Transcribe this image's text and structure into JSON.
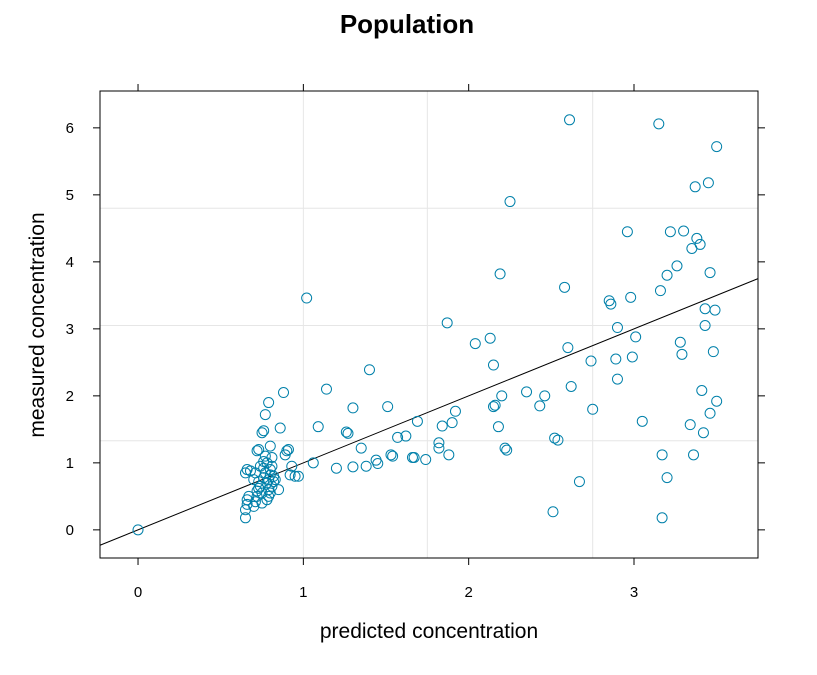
{
  "chart_data": {
    "type": "scatter",
    "title": "Population",
    "xlabel": "predicted concentration",
    "ylabel": "measured concentration",
    "xlim": [
      -0.23,
      3.75
    ],
    "ylim": [
      -0.42,
      6.55
    ],
    "xticks": [
      0,
      1,
      2,
      3
    ],
    "yticks": [
      0,
      1,
      2,
      3,
      4,
      5,
      6
    ],
    "grid": true,
    "point_color": "#0080aa",
    "line_color": "#000000",
    "grid_color": "#e6e6e6",
    "identity_line": {
      "x": [
        -0.23,
        3.75
      ],
      "y": [
        -0.23,
        3.75
      ]
    },
    "points": [
      [
        0.0,
        0.0
      ],
      [
        0.65,
        0.18
      ],
      [
        0.65,
        0.3
      ],
      [
        0.66,
        0.38
      ],
      [
        0.66,
        0.45
      ],
      [
        0.67,
        0.5
      ],
      [
        0.65,
        0.85
      ],
      [
        0.66,
        0.9
      ],
      [
        0.68,
        0.88
      ],
      [
        0.7,
        0.35
      ],
      [
        0.71,
        0.42
      ],
      [
        0.72,
        0.5
      ],
      [
        0.72,
        0.58
      ],
      [
        0.73,
        0.62
      ],
      [
        0.73,
        0.72
      ],
      [
        0.74,
        0.65
      ],
      [
        0.75,
        0.4
      ],
      [
        0.75,
        0.55
      ],
      [
        0.76,
        0.78
      ],
      [
        0.76,
        0.92
      ],
      [
        0.77,
        0.85
      ],
      [
        0.78,
        0.7
      ],
      [
        0.78,
        1.0
      ],
      [
        0.79,
        0.6
      ],
      [
        0.79,
        0.75
      ],
      [
        0.8,
        0.9
      ],
      [
        0.8,
        0.82
      ],
      [
        0.81,
        0.95
      ],
      [
        0.81,
        0.65
      ],
      [
        0.82,
        0.72
      ],
      [
        0.7,
        0.75
      ],
      [
        0.71,
        0.85
      ],
      [
        0.72,
        1.18
      ],
      [
        0.73,
        1.2
      ],
      [
        0.74,
        0.95
      ],
      [
        0.76,
        1.02
      ],
      [
        0.77,
        1.1
      ],
      [
        0.78,
        0.45
      ],
      [
        0.79,
        0.5
      ],
      [
        0.8,
        0.55
      ],
      [
        0.75,
        1.45
      ],
      [
        0.76,
        1.48
      ],
      [
        0.77,
        1.72
      ],
      [
        0.79,
        1.9
      ],
      [
        0.8,
        1.25
      ],
      [
        0.81,
        1.08
      ],
      [
        0.82,
        0.8
      ],
      [
        0.83,
        0.75
      ],
      [
        0.85,
        0.6
      ],
      [
        0.86,
        1.52
      ],
      [
        0.88,
        2.05
      ],
      [
        0.89,
        1.12
      ],
      [
        0.9,
        1.18
      ],
      [
        0.91,
        1.2
      ],
      [
        0.92,
        0.82
      ],
      [
        0.93,
        0.95
      ],
      [
        0.95,
        0.8
      ],
      [
        0.97,
        0.8
      ],
      [
        1.02,
        3.46
      ],
      [
        1.06,
        1.0
      ],
      [
        1.09,
        1.54
      ],
      [
        1.14,
        2.1
      ],
      [
        1.2,
        0.92
      ],
      [
        1.26,
        1.46
      ],
      [
        1.27,
        1.44
      ],
      [
        1.3,
        1.82
      ],
      [
        1.3,
        0.94
      ],
      [
        1.35,
        1.22
      ],
      [
        1.38,
        0.95
      ],
      [
        1.4,
        2.39
      ],
      [
        1.44,
        1.04
      ],
      [
        1.45,
        0.99
      ],
      [
        1.51,
        1.84
      ],
      [
        1.53,
        1.12
      ],
      [
        1.54,
        1.1
      ],
      [
        1.57,
        1.38
      ],
      [
        1.62,
        1.4
      ],
      [
        1.66,
        1.08
      ],
      [
        1.67,
        1.08
      ],
      [
        1.69,
        1.62
      ],
      [
        1.74,
        1.05
      ],
      [
        1.82,
        1.3
      ],
      [
        1.82,
        1.22
      ],
      [
        1.84,
        1.55
      ],
      [
        1.87,
        3.09
      ],
      [
        1.88,
        1.12
      ],
      [
        1.9,
        1.6
      ],
      [
        1.92,
        1.77
      ],
      [
        2.04,
        2.78
      ],
      [
        2.13,
        2.86
      ],
      [
        2.15,
        2.46
      ],
      [
        2.15,
        1.84
      ],
      [
        2.16,
        1.86
      ],
      [
        2.18,
        1.54
      ],
      [
        2.19,
        3.82
      ],
      [
        2.2,
        2.0
      ],
      [
        2.22,
        1.22
      ],
      [
        2.23,
        1.19
      ],
      [
        2.25,
        4.9
      ],
      [
        2.35,
        2.06
      ],
      [
        2.43,
        1.85
      ],
      [
        2.46,
        2.0
      ],
      [
        2.51,
        0.27
      ],
      [
        2.52,
        1.37
      ],
      [
        2.54,
        1.34
      ],
      [
        2.58,
        3.62
      ],
      [
        2.6,
        2.72
      ],
      [
        2.61,
        6.12
      ],
      [
        2.62,
        2.14
      ],
      [
        2.67,
        0.72
      ],
      [
        2.74,
        2.52
      ],
      [
        2.75,
        1.8
      ],
      [
        2.85,
        3.42
      ],
      [
        2.86,
        3.37
      ],
      [
        2.89,
        2.55
      ],
      [
        2.9,
        3.02
      ],
      [
        2.9,
        2.25
      ],
      [
        2.96,
        4.45
      ],
      [
        2.98,
        3.47
      ],
      [
        2.99,
        2.58
      ],
      [
        3.01,
        2.88
      ],
      [
        3.05,
        1.62
      ],
      [
        3.15,
        6.06
      ],
      [
        3.16,
        3.57
      ],
      [
        3.17,
        1.12
      ],
      [
        3.17,
        0.18
      ],
      [
        3.2,
        3.8
      ],
      [
        3.2,
        0.78
      ],
      [
        3.22,
        4.45
      ],
      [
        3.26,
        3.94
      ],
      [
        3.28,
        2.8
      ],
      [
        3.29,
        2.62
      ],
      [
        3.3,
        4.46
      ],
      [
        3.34,
        1.57
      ],
      [
        3.35,
        4.2
      ],
      [
        3.36,
        1.12
      ],
      [
        3.37,
        5.12
      ],
      [
        3.38,
        4.35
      ],
      [
        3.4,
        4.26
      ],
      [
        3.41,
        2.08
      ],
      [
        3.42,
        1.45
      ],
      [
        3.43,
        3.3
      ],
      [
        3.43,
        3.05
      ],
      [
        3.45,
        5.18
      ],
      [
        3.46,
        3.84
      ],
      [
        3.46,
        1.74
      ],
      [
        3.48,
        2.66
      ],
      [
        3.49,
        3.28
      ],
      [
        3.5,
        1.92
      ],
      [
        3.5,
        5.72
      ]
    ]
  }
}
